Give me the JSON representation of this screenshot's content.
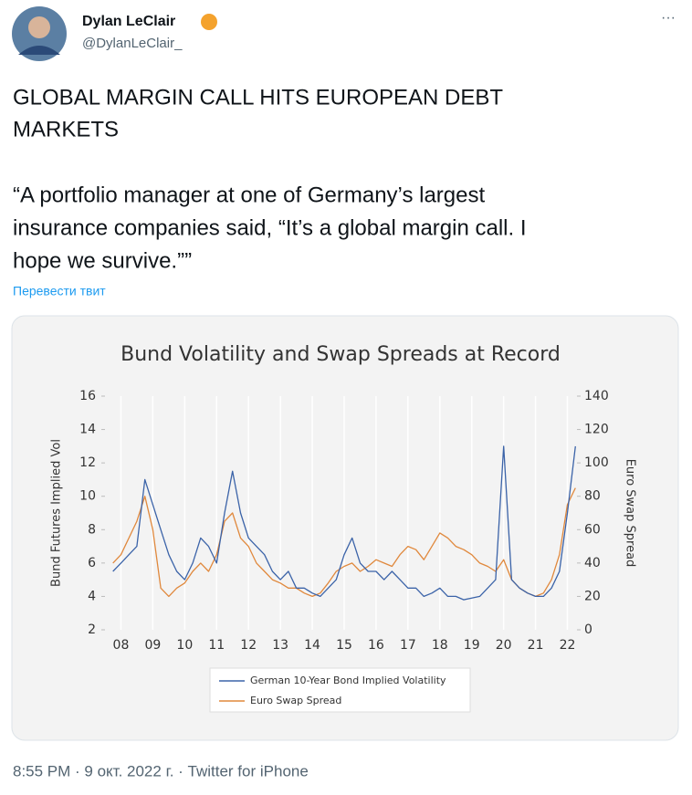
{
  "tweet": {
    "name": "Dylan LeClair",
    "handle": "@DylanLeClair_",
    "more": "···",
    "text_lines": [
      "GLOBAL MARGIN CALL HITS EUROPEAN DEBT",
      "MARKETS"
    ],
    "quote_lines": [
      "“A portfolio manager at one of Germany’s largest",
      "insurance companies said, “It’s a global margin call. I",
      "hope we survive.””"
    ],
    "translate": "Перевести твит",
    "footer": "8:55 PM · 9 окт. 2022 г. · Twitter for iPhone"
  },
  "chart_data": {
    "type": "line",
    "title": "Bund Volatility and Swap Spreads at Record",
    "y_label": "Bund Futures Implied Vol",
    "y2_label": "Euro Swap Spread",
    "x": [
      7.75,
      8,
      8.25,
      8.5,
      8.75,
      9,
      9.25,
      9.5,
      9.75,
      10,
      10.25,
      10.5,
      10.75,
      11,
      11.25,
      11.5,
      11.75,
      12,
      12.25,
      12.5,
      12.75,
      13,
      13.25,
      13.5,
      13.75,
      14,
      14.25,
      14.5,
      14.75,
      15,
      15.25,
      15.5,
      15.75,
      16,
      16.25,
      16.5,
      16.75,
      17,
      17.25,
      17.5,
      17.75,
      18,
      18.25,
      18.5,
      18.75,
      19,
      19.25,
      19.5,
      19.75,
      20,
      20.25,
      20.5,
      20.75,
      21,
      21.25,
      21.5,
      21.75,
      22,
      22.25
    ],
    "series": [
      {
        "name": "German 10-Year Bond Implied Volatility",
        "color": "#3b63a8",
        "axis": "y",
        "values": [
          5.5,
          6,
          6.5,
          7,
          11,
          9.5,
          8,
          6.5,
          5.5,
          5,
          6,
          7.5,
          7,
          6,
          9,
          11.5,
          9,
          7.5,
          7,
          6.5,
          5.5,
          5,
          5.5,
          4.5,
          4.5,
          4.2,
          4,
          4.5,
          5,
          6.5,
          7.5,
          6,
          5.5,
          5.5,
          5,
          5.5,
          5,
          4.5,
          4.5,
          4,
          4.2,
          4.5,
          4,
          4,
          3.8,
          3.9,
          4,
          4.5,
          5,
          13,
          5,
          4.5,
          4.2,
          4,
          4,
          4.5,
          5.5,
          9,
          13
        ]
      },
      {
        "name": "Euro Swap Spread",
        "color": "#e0883c",
        "axis": "y2",
        "values": [
          40,
          45,
          55,
          65,
          80,
          60,
          25,
          20,
          25,
          28,
          35,
          40,
          35,
          45,
          65,
          70,
          55,
          50,
          40,
          35,
          30,
          28,
          25,
          25,
          22,
          20,
          22,
          28,
          35,
          38,
          40,
          35,
          38,
          42,
          40,
          38,
          45,
          50,
          48,
          42,
          50,
          58,
          55,
          50,
          48,
          45,
          40,
          38,
          35,
          42,
          30,
          25,
          22,
          20,
          22,
          30,
          45,
          75,
          85
        ]
      }
    ],
    "xlim": [
      7.5,
      22.3
    ],
    "xticks": [
      {
        "value": 8,
        "label": "08"
      },
      {
        "value": 9,
        "label": "09"
      },
      10,
      11,
      12,
      13,
      14,
      15,
      16,
      17,
      18,
      19,
      20,
      21,
      22
    ],
    "ylim": [
      2,
      16
    ],
    "yticks": [
      2,
      4,
      6,
      8,
      10,
      12,
      14,
      16
    ],
    "y2lim": [
      0,
      140
    ],
    "y2ticks": [
      0,
      20,
      40,
      60,
      80,
      100,
      120,
      140
    ],
    "grid": true
  }
}
